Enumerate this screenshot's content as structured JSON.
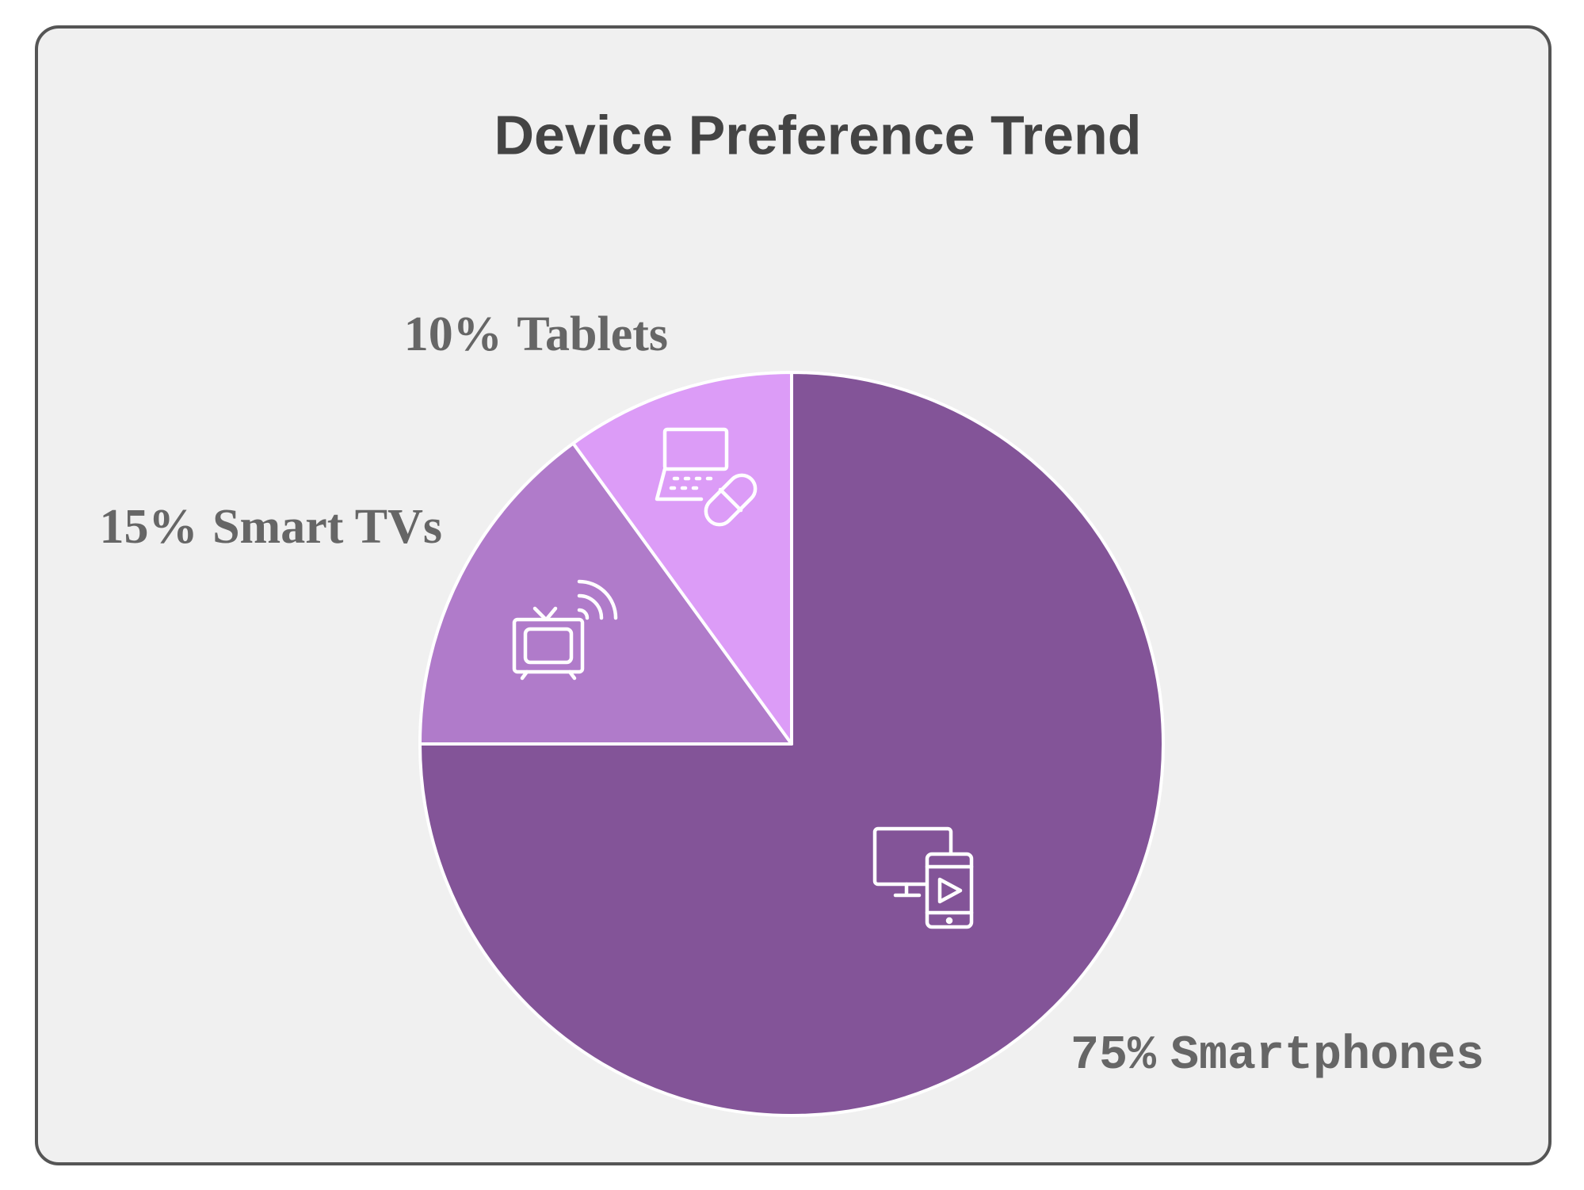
{
  "chart_data": {
    "type": "pie",
    "title": "Device Preference Trend",
    "categories": [
      "Smartphones",
      "Smart TVs",
      "Tablets"
    ],
    "values": [
      75,
      15,
      10
    ],
    "value_labels": [
      "75%",
      "15%",
      "10%"
    ],
    "colors": [
      "#835498",
      "#b07bca",
      "#dc9cf7"
    ]
  }
}
